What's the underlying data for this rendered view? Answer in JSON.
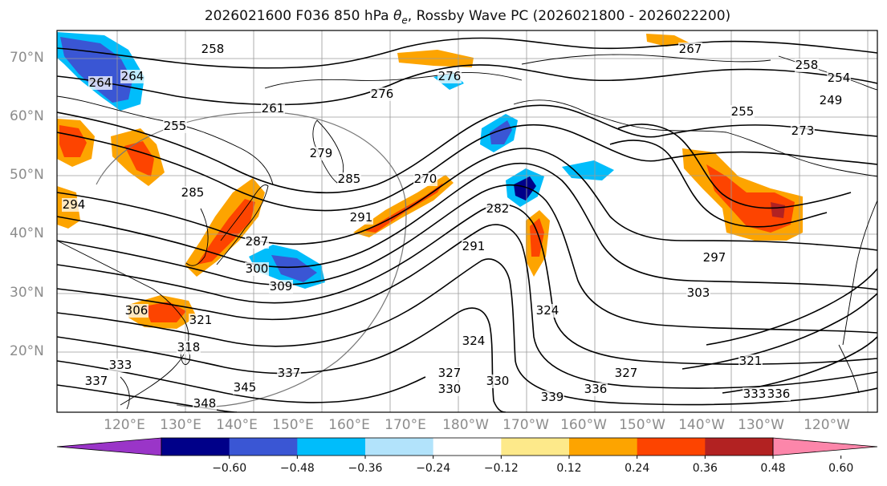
{
  "title": {
    "prefix": "2026021600 F036 850 hPa ",
    "var_symbol": "θ",
    "var_sub": "e",
    "suffix": ", Rossby Wave PC (2026021800 - 2026022200)"
  },
  "lat_labels": [
    "70°N",
    "60°N",
    "50°N",
    "40°N",
    "30°N",
    "20°N"
  ],
  "lon_labels": [
    "120°E",
    "130°E",
    "140°E",
    "150°E",
    "160°E",
    "170°E",
    "180°W",
    "170°W",
    "160°W",
    "150°W",
    "140°W",
    "130°W",
    "120°W"
  ],
  "contour_labels": [
    "258",
    "267",
    "264",
    "264",
    "261",
    "258",
    "254",
    "249",
    "255",
    "276",
    "276",
    "255",
    "273",
    "279",
    "285",
    "270",
    "285",
    "294",
    "291",
    "282",
    "287",
    "291",
    "297",
    "300",
    "309",
    "303",
    "306",
    "321",
    "318",
    "324",
    "327",
    "321",
    "330",
    "337",
    "337",
    "345",
    "348",
    "330",
    "339",
    "336",
    "333",
    "336",
    "327",
    "333",
    "324"
  ],
  "colorbar": {
    "tick_labels": [
      "−0.60",
      "−0.48",
      "−0.36",
      "−0.24",
      "−0.12",
      "0.12",
      "0.24",
      "0.36",
      "0.48",
      "0.60"
    ],
    "colors": [
      "#9a35c8",
      "#000089",
      "#3a56d4",
      "#00bdfb",
      "#b2e3fb",
      "#ffffff",
      "#fde98a",
      "#fda400",
      "#fd4400",
      "#b22222",
      "#fc86aa"
    ]
  },
  "colors": {
    "contour": "#000000",
    "grid": "#9a9a9a",
    "coast": "#000000"
  }
}
